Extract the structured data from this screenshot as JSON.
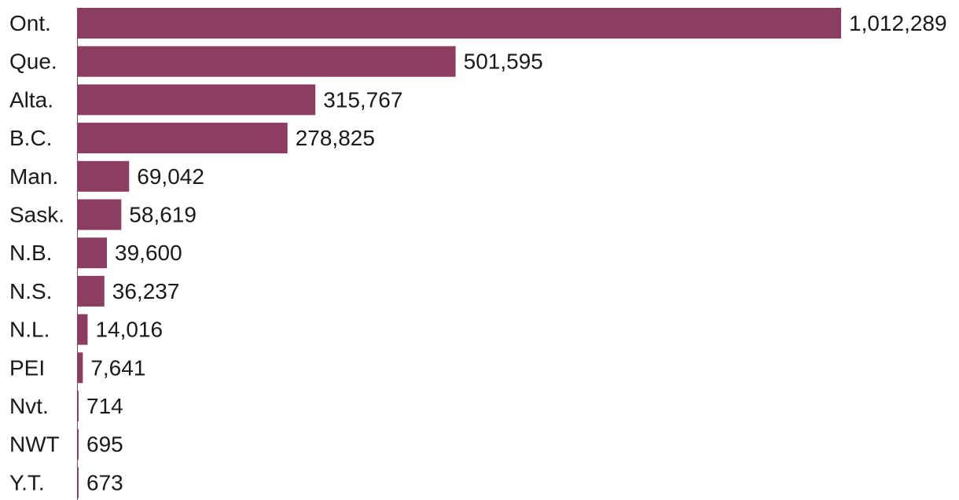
{
  "colors": {
    "bar": "#8b3d62",
    "text": "#1a1a1a",
    "axis": "#8b3d62"
  },
  "chart_data": {
    "type": "bar",
    "orientation": "horizontal",
    "title": "",
    "xlabel": "",
    "ylabel": "",
    "grid": false,
    "categories": [
      "Ont.",
      "Que.",
      "Alta.",
      "B.C.",
      "Man.",
      "Sask.",
      "N.B.",
      "N.S.",
      "N.L.",
      "PEI",
      "Nvt.",
      "NWT",
      "Y.T."
    ],
    "values": [
      1012289,
      501595,
      315767,
      278825,
      69042,
      58619,
      39600,
      36237,
      14016,
      7641,
      714,
      695,
      673
    ],
    "value_labels": [
      "1,012,289",
      "501,595",
      "315,767",
      "278,825",
      "69,042",
      "58,619",
      "39,600",
      "36,237",
      "14,016",
      "7,641",
      "714",
      "695",
      "673"
    ],
    "xlim": [
      0,
      1012289
    ]
  }
}
